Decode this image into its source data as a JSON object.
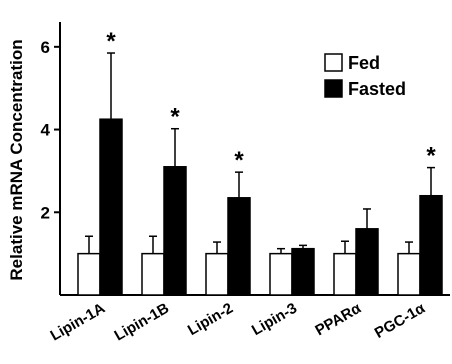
{
  "chart_data": {
    "type": "bar",
    "title": "",
    "xlabel": "",
    "ylabel": "Relative mRNA Concentration",
    "ylim": [
      0,
      6.6
    ],
    "yticks": [
      2,
      4,
      6
    ],
    "grid": false,
    "legend_position": "top-right",
    "categories": [
      "Lipin-1A",
      "Lipin-1B",
      "Lipin-2",
      "Lipin-3",
      "PPARα",
      "PGC-1α"
    ],
    "series": [
      {
        "name": "Fed",
        "color": "#ffffff",
        "values": [
          1.0,
          1.0,
          1.0,
          1.0,
          1.0,
          1.0
        ],
        "errors": [
          0.42,
          0.42,
          0.28,
          0.12,
          0.3,
          0.28
        ]
      },
      {
        "name": "Fasted",
        "color": "#000000",
        "values": [
          4.25,
          3.1,
          2.35,
          1.12,
          1.6,
          2.4
        ],
        "errors": [
          1.6,
          0.92,
          0.62,
          0.08,
          0.48,
          0.68
        ]
      }
    ],
    "significance": [
      "*",
      "*",
      "*",
      "",
      "",
      "*"
    ]
  }
}
